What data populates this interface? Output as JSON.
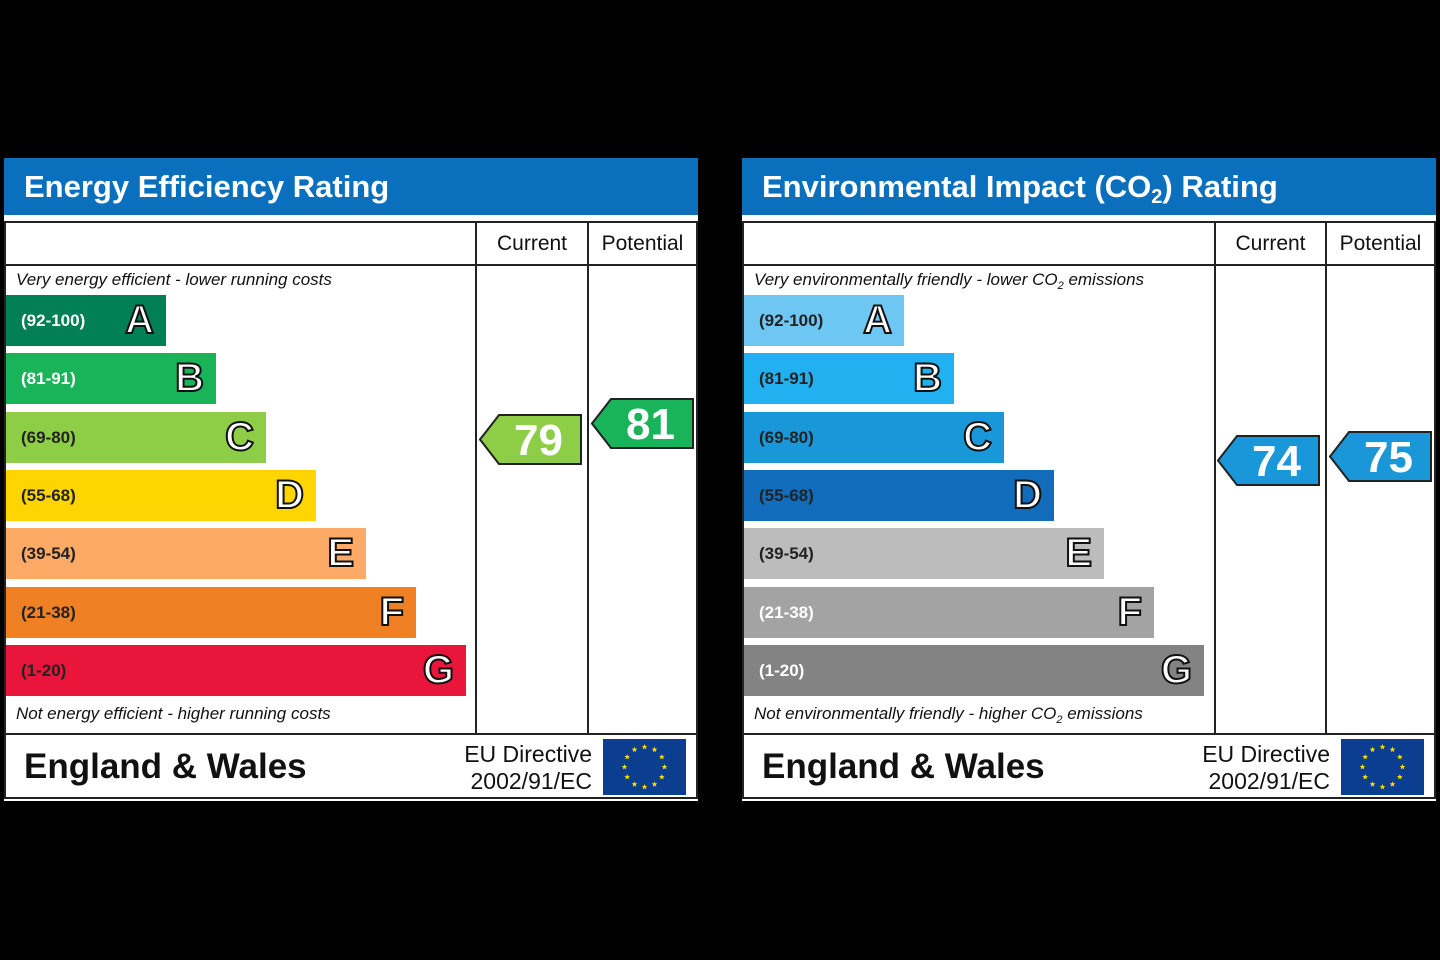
{
  "charts": [
    {
      "id": "energy",
      "title": "Energy Efficiency Rating",
      "title_sub": "",
      "title_suffix": "",
      "headers": {
        "current": "Current",
        "potential": "Potential"
      },
      "top_note": "Very energy efficient - lower running costs",
      "top_note_sub": "",
      "top_note_suffix": "",
      "bottom_note": "Not energy efficient - higher running costs",
      "bottom_note_sub": "",
      "bottom_note_suffix": "",
      "footer": {
        "country": "England & Wales",
        "directive_line1": "EU Directive",
        "directive_line2": "2002/91/EC"
      },
      "bands": [
        {
          "letter": "A",
          "range": "(92-100)",
          "color": "#008054",
          "text_color": "#ffffff"
        },
        {
          "letter": "B",
          "range": "(81-91)",
          "color": "#19b459",
          "text_color": "#ffffff"
        },
        {
          "letter": "C",
          "range": "(69-80)",
          "color": "#8dce46",
          "text_color": "#222222"
        },
        {
          "letter": "D",
          "range": "(55-68)",
          "color": "#ffd500",
          "text_color": "#222222"
        },
        {
          "letter": "E",
          "range": "(39-54)",
          "color": "#fcaa65",
          "text_color": "#222222"
        },
        {
          "letter": "F",
          "range": "(21-38)",
          "color": "#ef8023",
          "text_color": "#222222"
        },
        {
          "letter": "G",
          "range": "(1-20)",
          "color": "#e9153b",
          "text_color": "#222222"
        }
      ],
      "current": {
        "value": 79,
        "band": "C",
        "color": "#8dce46"
      },
      "potential": {
        "value": 81,
        "band": "B",
        "color": "#19b459"
      }
    },
    {
      "id": "environmental",
      "title": "Environmental Impact (CO",
      "title_sub": "2",
      "title_suffix": ") Rating",
      "headers": {
        "current": "Current",
        "potential": "Potential"
      },
      "top_note": "Very environmentally friendly - lower CO",
      "top_note_sub": "2",
      "top_note_suffix": " emissions",
      "bottom_note": "Not environmentally friendly - higher CO",
      "bottom_note_sub": "2",
      "bottom_note_suffix": " emissions",
      "footer": {
        "country": "England & Wales",
        "directive_line1": "EU Directive",
        "directive_line2": "2002/91/EC"
      },
      "bands": [
        {
          "letter": "A",
          "range": "(92-100)",
          "color": "#6dc7f2",
          "text_color": "#222222"
        },
        {
          "letter": "B",
          "range": "(81-91)",
          "color": "#22b1f0",
          "text_color": "#222222"
        },
        {
          "letter": "C",
          "range": "(69-80)",
          "color": "#1a97d8",
          "text_color": "#222222"
        },
        {
          "letter": "D",
          "range": "(55-68)",
          "color": "#116cbb",
          "text_color": "#222222"
        },
        {
          "letter": "E",
          "range": "(39-54)",
          "color": "#bcbcbc",
          "text_color": "#222222"
        },
        {
          "letter": "F",
          "range": "(21-38)",
          "color": "#a3a3a3",
          "text_color": "#ffffff"
        },
        {
          "letter": "G",
          "range": "(1-20)",
          "color": "#838383",
          "text_color": "#ffffff"
        }
      ],
      "current": {
        "value": 74,
        "band": "C",
        "color": "#1a97d8"
      },
      "potential": {
        "value": 75,
        "band": "C",
        "color": "#1a97d8"
      }
    }
  ]
}
